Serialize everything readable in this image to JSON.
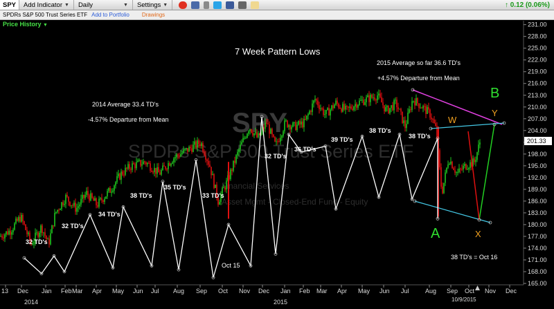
{
  "toolbar": {
    "ticker": "SPY",
    "add_indicator": "Add Indicator",
    "period": "Daily",
    "settings": "Settings",
    "change": "0.12 (0.06%)",
    "icons": [
      "alarm-clock-icon",
      "save-icon",
      "phone-icon",
      "twitter-icon",
      "facebook-icon",
      "camera-icon",
      "note-icon"
    ]
  },
  "subbar": {
    "name": "SPDRs S&P 500 Trust Series ETF",
    "portfolio_link": "Add to Portfolio",
    "drawings_link": "Drawings"
  },
  "price_history_label": "Price History",
  "watermark": {
    "ticker": "SPY",
    "name": "SPDRs S&P 500 Trust Series ETF",
    "sector": "Financial Services",
    "category": "Asset Mgmt - Closed-End Fund - Equity"
  },
  "colors": {
    "up_candle": "#1ec81e",
    "down_candle": "#e01010",
    "cycle_line": "#ffffff",
    "channel_line": "#44c8e6",
    "upper_line": "#e040e0",
    "green_line": "#22d022",
    "label_orange": "#f0a020",
    "label_green": "#30e030"
  },
  "chart_data": {
    "type": "line",
    "title": "7 Week Pattern Lows",
    "y_axis": {
      "min": 165,
      "max": 232,
      "ticks": [
        "231.00",
        "228.00",
        "225.00",
        "222.00",
        "219.00",
        "216.00",
        "213.00",
        "210.00",
        "207.00",
        "204.00",
        "201.00",
        "198.00",
        "195.00",
        "192.00",
        "189.00",
        "186.00",
        "183.00",
        "180.00",
        "177.00",
        "174.00",
        "171.00",
        "168.00",
        "165.00"
      ],
      "last_price": "201.33"
    },
    "x_axis": {
      "ticks": [
        "13",
        "Dec",
        "Jan",
        "Feb",
        "Mar",
        "Apr",
        "May",
        "Jun",
        "Jul",
        "Aug",
        "Sep",
        "Oct",
        "Nov",
        "Dec",
        "Jan",
        "Feb",
        "Mar",
        "Apr",
        "May",
        "Jun",
        "Jul",
        "Aug",
        "Sep",
        "Oct",
        "Nov",
        "Dec"
      ],
      "years": [
        "2014",
        "2015"
      ],
      "current_date": "10/9/2015"
    },
    "annotations": {
      "avg_2014": "2014 Average 33.4 TD's",
      "dep_2014": "-4.57% Departure from Mean",
      "avg_2015": "2015 Average so far 36.6 TD's",
      "dep_2015": "+4.57% Departure from Mean",
      "oct15": "Oct 15",
      "oct16": "38 TD's = Oct 16",
      "points": [
        "A",
        "B",
        "W",
        "X",
        "Y"
      ]
    },
    "cycle_labels": [
      "32 TD's",
      "32 TD's",
      "34 TD's",
      "38 TD's",
      "35 TD's",
      "33 TD's",
      "32 TD's",
      "36 TD's",
      "39 TD's",
      "38 TD's",
      "38 TD's"
    ],
    "cycle_path": [
      [
        0,
        171.5
      ],
      [
        1,
        167.5
      ],
      [
        2,
        172
      ],
      [
        3,
        168
      ],
      [
        4,
        182.5
      ],
      [
        5,
        169
      ],
      [
        6,
        184.5
      ],
      [
        7,
        169.5
      ],
      [
        8,
        191
      ],
      [
        9,
        168.5
      ],
      [
        10,
        196.5
      ],
      [
        11,
        166.5
      ],
      [
        12,
        180
      ],
      [
        13,
        169.5
      ],
      [
        14,
        207.5
      ],
      [
        15,
        172.5
      ],
      [
        16,
        203
      ],
      [
        17,
        198.5
      ],
      [
        18,
        200
      ],
      [
        19,
        184
      ],
      [
        20,
        202.5
      ],
      [
        21,
        187
      ],
      [
        22,
        203
      ],
      [
        23,
        186.5
      ],
      [
        24,
        202
      ],
      [
        25,
        181
      ]
    ]
  }
}
